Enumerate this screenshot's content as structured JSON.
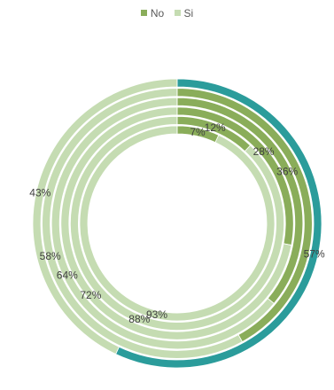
{
  "chart_data": {
    "type": "doughnut",
    "legend_position": "top",
    "series_names": [
      "No",
      "Si"
    ],
    "colors": {
      "No": "#8aad5a",
      "Si": "#c5dcb2",
      "No_outer": "#2b9c9b"
    },
    "rings": [
      {
        "no": 57,
        "si": 43,
        "no_label": "57%",
        "si_label": "43%"
      },
      {
        "no": 42,
        "si": 58,
        "no_label": "",
        "si_label": "58%"
      },
      {
        "no": 36,
        "si": 64,
        "no_label": "36%",
        "si_label": "64%"
      },
      {
        "no": 28,
        "si": 72,
        "no_label": "28%",
        "si_label": "72%"
      },
      {
        "no": 12,
        "si": 88,
        "no_label": "12%",
        "si_label": "88%"
      },
      {
        "no": 7,
        "si": 93,
        "no_label": "7%",
        "si_label": "93%"
      }
    ]
  }
}
